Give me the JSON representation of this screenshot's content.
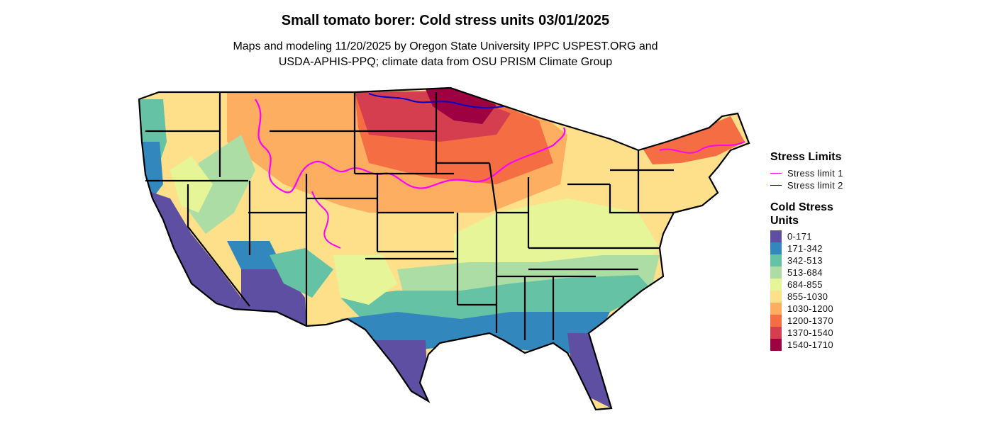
{
  "header": {
    "title": "Small tomato borer: Cold stress units 03/01/2025",
    "subtitle_line1": "Maps and modeling 11/20/2025 by Oregon State University IPPC USPEST.ORG and",
    "subtitle_line2": "USDA-APHIS-PPQ; climate data from OSU PRISM Climate Group"
  },
  "legend_limits": {
    "title": "Stress Limits",
    "items": [
      {
        "label": "Stress limit 1",
        "color": "#ff00ff"
      },
      {
        "label": "Stress limit 2",
        "color": "#0000cc"
      }
    ]
  },
  "legend_units": {
    "title_line1": "Cold Stress",
    "title_line2": "Units",
    "items": [
      {
        "label": "0-171",
        "color": "#5e4fa2"
      },
      {
        "label": "171-342",
        "color": "#3288bd"
      },
      {
        "label": "342-513",
        "color": "#66c2a5"
      },
      {
        "label": "513-684",
        "color": "#abdda4"
      },
      {
        "label": "684-855",
        "color": "#e6f598"
      },
      {
        "label": "855-1030",
        "color": "#fee08b"
      },
      {
        "label": "1030-1200",
        "color": "#fdae61"
      },
      {
        "label": "1200-1370",
        "color": "#f46d43"
      },
      {
        "label": "1370-1540",
        "color": "#d53e4f"
      },
      {
        "label": "1540-1710",
        "color": "#9e0142"
      }
    ]
  }
}
